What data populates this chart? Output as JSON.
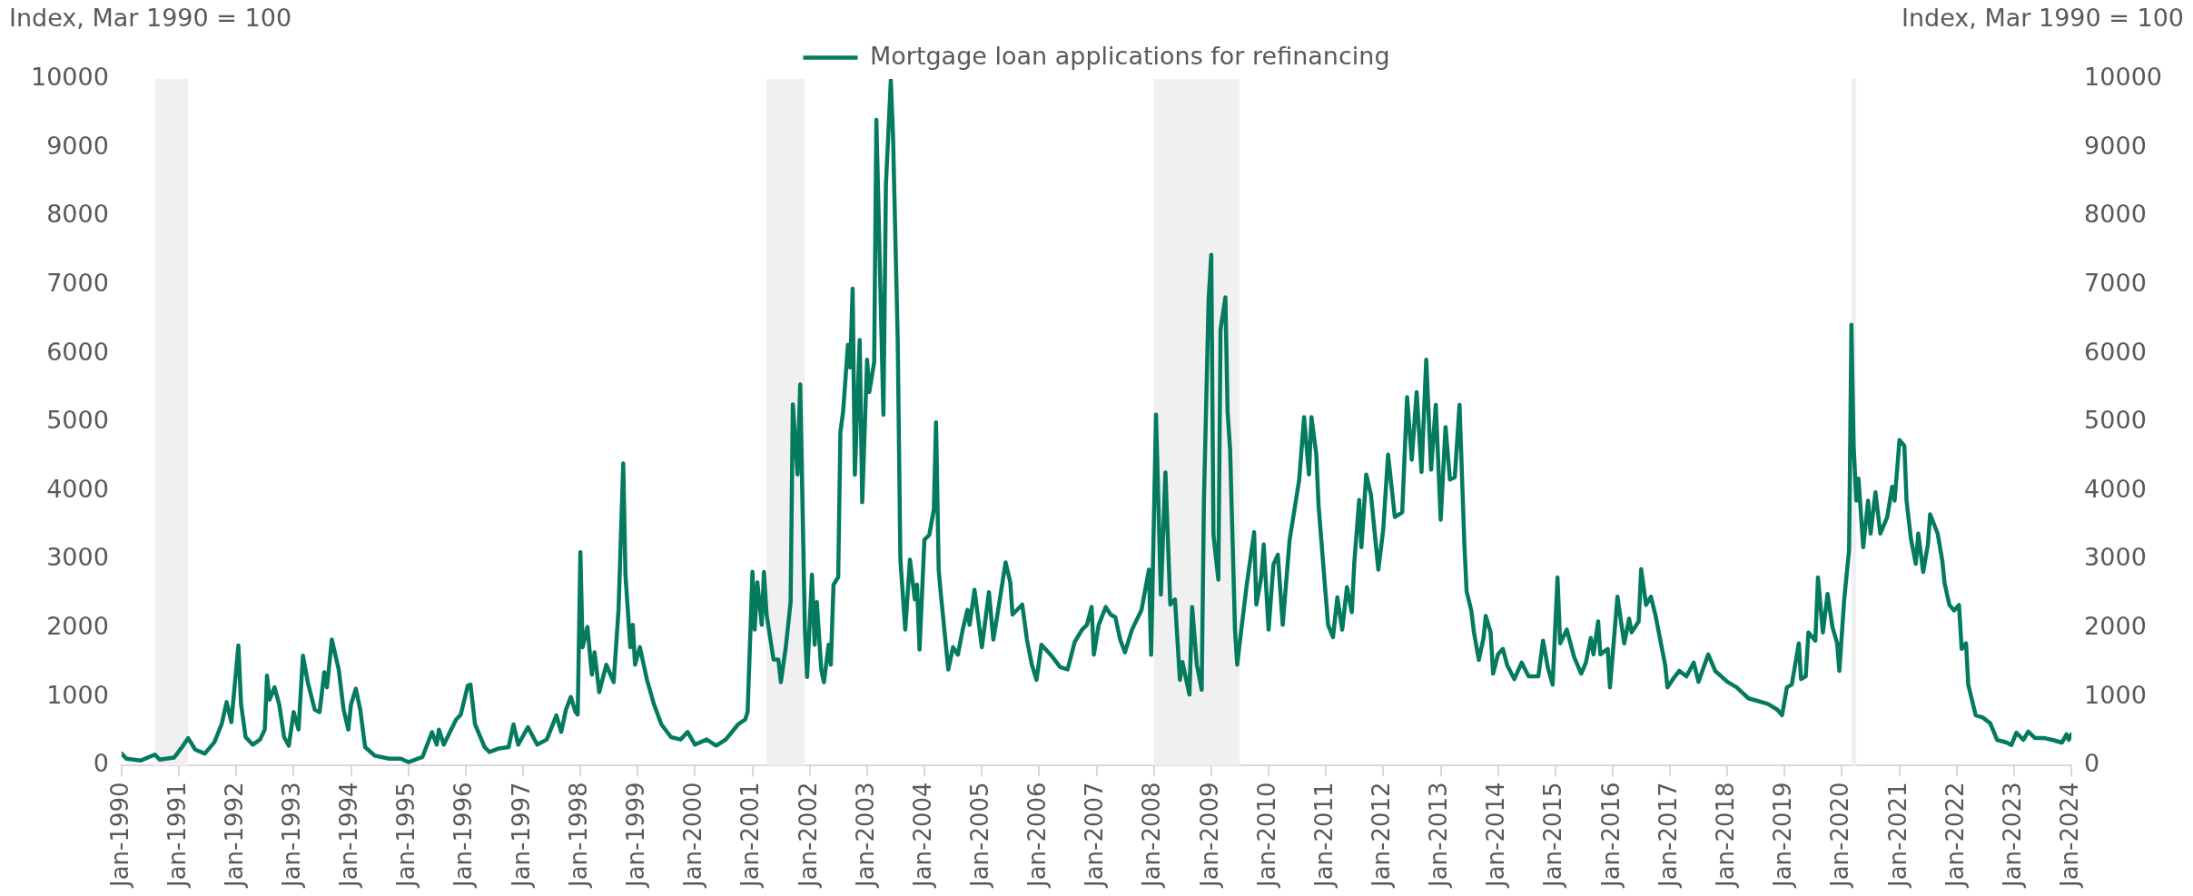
{
  "chart_data": {
    "type": "line",
    "ylabel": "Index, Mar 1990 = 100",
    "y2label": "Index, Mar 1990 = 100",
    "legend": "top",
    "marker": "none",
    "line_style": "solid",
    "xlim": [
      "1990-01",
      "2024-01"
    ],
    "xticks": [
      {
        "value": "1990-01",
        "label": "Jan-1990"
      },
      {
        "value": "1991-01",
        "label": "Jan-1991"
      },
      {
        "value": "1992-01",
        "label": "Jan-1992"
      },
      {
        "value": "1993-01",
        "label": "Jan-1993"
      },
      {
        "value": "1994-01",
        "label": "Jan-1994"
      },
      {
        "value": "1995-01",
        "label": "Jan-1995"
      },
      {
        "value": "1996-01",
        "label": "Jan-1996"
      },
      {
        "value": "1997-01",
        "label": "Jan-1997"
      },
      {
        "value": "1998-01",
        "label": "Jan-1998"
      },
      {
        "value": "1999-01",
        "label": "Jan-1999"
      },
      {
        "value": "2000-01",
        "label": "Jan-2000"
      },
      {
        "value": "2001-01",
        "label": "Jan-2001"
      },
      {
        "value": "2002-01",
        "label": "Jan-2002"
      },
      {
        "value": "2003-01",
        "label": "Jan-2003"
      },
      {
        "value": "2004-01",
        "label": "Jan-2004"
      },
      {
        "value": "2005-01",
        "label": "Jan-2005"
      },
      {
        "value": "2006-01",
        "label": "Jan-2006"
      },
      {
        "value": "2007-01",
        "label": "Jan-2007"
      },
      {
        "value": "2008-01",
        "label": "Jan-2008"
      },
      {
        "value": "2009-01",
        "label": "Jan-2009"
      },
      {
        "value": "2010-01",
        "label": "Jan-2010"
      },
      {
        "value": "2011-01",
        "label": "Jan-2011"
      },
      {
        "value": "2012-01",
        "label": "Jan-2012"
      },
      {
        "value": "2013-01",
        "label": "Jan-2013"
      },
      {
        "value": "2014-01",
        "label": "Jan-2014"
      },
      {
        "value": "2015-01",
        "label": "Jan-2015"
      },
      {
        "value": "2016-01",
        "label": "Jan-2016"
      },
      {
        "value": "2017-01",
        "label": "Jan-2017"
      },
      {
        "value": "2018-01",
        "label": "Jan-2018"
      },
      {
        "value": "2019-01",
        "label": "Jan-2019"
      },
      {
        "value": "2020-01",
        "label": "Jan-2020"
      },
      {
        "value": "2021-01",
        "label": "Jan-2021"
      },
      {
        "value": "2022-01",
        "label": "Jan-2022"
      },
      {
        "value": "2023-01",
        "label": "Jan-2023"
      },
      {
        "value": "2024-01",
        "label": "Jan-2024"
      }
    ],
    "ylim": [
      0,
      10000
    ],
    "yticks": [
      0,
      1000,
      2000,
      3000,
      4000,
      5000,
      6000,
      7000,
      8000,
      9000,
      10000
    ],
    "y2lim": [
      0,
      10000
    ],
    "y2ticks": [
      0,
      1000,
      2000,
      3000,
      4000,
      5000,
      6000,
      7000,
      8000,
      9000,
      10000
    ],
    "bands": [
      {
        "axis": "x",
        "from": "1990-08",
        "to": "1991-03",
        "color": "#f0f0f0"
      },
      {
        "axis": "x",
        "from": "2001-04",
        "to": "2001-12",
        "color": "#f0f0f0"
      },
      {
        "axis": "x",
        "from": "2008-01",
        "to": "2009-07",
        "color": "#f0f0f0"
      },
      {
        "axis": "x",
        "from": "2020-03",
        "to": "2020-04",
        "color": "#f0f0f0"
      }
    ],
    "series": [
      {
        "name": "Mortgage loan applications for refinancing",
        "color": "#047a5e",
        "x": [
          "1990-01-01",
          "1990-02-01",
          "1990-05-01",
          "1990-08-01",
          "1990-09-01",
          "1990-12-01",
          "1991-01-15",
          "1991-03-01",
          "1991-04-15",
          "1991-06-15",
          "1991-08-15",
          "1991-10-01",
          "1991-11-01",
          "1991-12-01",
          "1992-01-15",
          "1992-02-01",
          "1992-03-01",
          "1992-04-15",
          "1992-06-01",
          "1992-07-01",
          "1992-07-15",
          "1992-08-01",
          "1992-09-01",
          "1992-10-01",
          "1992-11-01",
          "1992-12-01",
          "1993-01-01",
          "1993-02-01",
          "1993-03-01",
          "1993-04-01",
          "1993-05-15",
          "1993-06-15",
          "1993-07-15",
          "1993-08-01",
          "1993-09-01",
          "1993-10-15",
          "1993-11-15",
          "1993-12-15",
          "1994-01-01",
          "1994-02-01",
          "1994-03-01",
          "1994-04-01",
          "1994-06-01",
          "1994-09-01",
          "1994-11-15",
          "1995-01-01",
          "1995-04-01",
          "1995-06-01",
          "1995-07-01",
          "1995-07-15",
          "1995-08-15",
          "1995-11-01",
          "1995-12-01",
          "1996-01-15",
          "1996-02-01",
          "1996-03-01",
          "1996-05-01",
          "1996-06-01",
          "1996-08-01",
          "1996-10-01",
          "1996-11-01",
          "1996-12-01",
          "1997-02-01",
          "1997-04-01",
          "1997-06-01",
          "1997-08-01",
          "1997-09-01",
          "1997-10-01",
          "1997-11-01",
          "1997-12-01",
          "1997-12-15",
          "1998-01-01",
          "1998-01-15",
          "1998-02-15",
          "1998-03-15",
          "1998-04-01",
          "1998-05-01",
          "1998-06-15",
          "1998-08-01",
          "1998-09-01",
          "1998-10-01",
          "1998-10-15",
          "1998-11-15",
          "1998-12-01",
          "1998-12-15",
          "1999-01-15",
          "1999-03-01",
          "1999-04-15",
          "1999-06-01",
          "1999-08-01",
          "1999-10-01",
          "1999-11-15",
          "2000-01-01",
          "2000-03-15",
          "2000-05-15",
          "2000-07-15",
          "2000-10-01",
          "2000-11-15",
          "2000-12-01",
          "2001-01-01",
          "2001-01-15",
          "2001-02-01",
          "2001-03-01",
          "2001-03-15",
          "2001-04-01",
          "2001-05-15",
          "2001-06-15",
          "2001-07-01",
          "2001-08-01",
          "2001-09-01",
          "2001-09-15",
          "2001-10-15",
          "2001-11-01",
          "2001-12-01",
          "2001-12-15",
          "2002-01-15",
          "2002-02-01",
          "2002-02-15",
          "2002-03-15",
          "2002-04-01",
          "2002-05-01",
          "2002-05-15",
          "2002-06-01",
          "2002-07-01",
          "2002-07-15",
          "2002-08-01",
          "2002-09-01",
          "2002-09-15",
          "2002-10-01",
          "2002-10-15",
          "2002-11-15",
          "2002-12-01",
          "2003-01-01",
          "2003-01-15",
          "2003-02-15",
          "2003-03-01",
          "2003-04-15",
          "2003-05-01",
          "2003-06-01",
          "2003-06-15",
          "2003-07-15",
          "2003-08-01",
          "2003-09-01",
          "2003-10-01",
          "2003-11-01",
          "2003-11-15",
          "2003-12-01",
          "2004-01-01",
          "2004-02-01",
          "2004-03-01",
          "2004-03-15",
          "2004-04-01",
          "2004-04-15",
          "2004-06-01",
          "2004-07-01",
          "2004-08-01",
          "2004-09-01",
          "2004-10-01",
          "2004-10-15",
          "2004-11-15",
          "2005-01-01",
          "2005-02-15",
          "2005-03-15",
          "2005-04-15",
          "2005-06-01",
          "2005-07-01",
          "2005-07-15",
          "2005-09-15",
          "2005-10-15",
          "2005-11-15",
          "2005-12-15",
          "2006-01-15",
          "2006-03-15",
          "2006-05-15",
          "2006-07-01",
          "2006-08-15",
          "2006-10-01",
          "2006-11-01",
          "2006-12-01",
          "2006-12-15",
          "2007-01-15",
          "2007-03-01",
          "2007-04-01",
          "2007-05-01",
          "2007-06-01",
          "2007-07-01",
          "2007-08-15",
          "2007-10-15",
          "2007-12-01",
          "2007-12-15",
          "2008-01-15",
          "2008-02-15",
          "2008-03-15",
          "2008-04-15",
          "2008-05-15",
          "2008-06-15",
          "2008-07-01",
          "2008-08-15",
          "2008-09-01",
          "2008-10-01",
          "2008-11-01",
          "2008-11-15",
          "2008-12-15",
          "2009-01-01",
          "2009-01-15",
          "2009-02-15",
          "2009-03-01",
          "2009-04-01",
          "2009-04-15",
          "2009-05-01",
          "2009-06-01",
          "2009-06-15",
          "2009-07-15",
          "2009-08-15",
          "2009-10-01",
          "2009-10-15",
          "2009-11-15",
          "2009-12-01",
          "2010-01-01",
          "2010-02-01",
          "2010-03-01",
          "2010-04-01",
          "2010-05-15",
          "2010-06-15",
          "2010-07-15",
          "2010-08-15",
          "2010-09-15",
          "2010-10-01",
          "2010-11-01",
          "2010-11-15",
          "2010-12-15",
          "2011-01-15",
          "2011-02-15",
          "2011-03-15",
          "2011-04-15",
          "2011-05-15",
          "2011-06-15",
          "2011-07-01",
          "2011-08-01",
          "2011-08-15",
          "2011-09-15",
          "2011-10-15",
          "2011-12-01",
          "2012-01-01",
          "2012-02-01",
          "2012-03-15",
          "2012-05-01",
          "2012-06-01",
          "2012-07-01",
          "2012-08-01",
          "2012-09-01",
          "2012-10-01",
          "2012-11-01",
          "2012-12-01",
          "2013-01-01",
          "2013-02-01",
          "2013-03-01",
          "2013-04-01",
          "2013-05-01",
          "2013-06-01",
          "2013-06-15",
          "2013-07-15",
          "2013-08-01",
          "2013-09-01",
          "2013-10-01",
          "2013-10-15",
          "2013-11-15",
          "2013-12-01",
          "2014-01-01",
          "2014-02-01",
          "2014-03-01",
          "2014-04-15",
          "2014-06-01",
          "2014-07-15",
          "2014-09-15",
          "2014-10-15",
          "2014-11-15",
          "2014-12-15",
          "2015-01-15",
          "2015-02-01",
          "2015-03-15",
          "2015-05-01",
          "2015-06-15",
          "2015-07-15",
          "2015-08-15",
          "2015-09-01",
          "2015-10-01",
          "2015-10-15",
          "2015-12-01",
          "2015-12-15",
          "2016-02-01",
          "2016-03-15",
          "2016-04-15",
          "2016-05-01",
          "2016-06-15",
          "2016-07-01",
          "2016-08-01",
          "2016-09-01",
          "2016-10-01",
          "2016-12-01",
          "2016-12-15",
          "2017-02-01",
          "2017-03-01",
          "2017-04-15",
          "2017-06-01",
          "2017-07-01",
          "2017-09-01",
          "2017-10-15",
          "2018-01-01",
          "2018-03-01",
          "2018-05-15",
          "2018-07-15",
          "2018-09-15",
          "2018-11-15",
          "2018-12-15",
          "2019-01-15",
          "2019-02-15",
          "2019-04-01",
          "2019-04-15",
          "2019-05-15",
          "2019-06-01",
          "2019-07-15",
          "2019-08-01",
          "2019-09-01",
          "2019-10-01",
          "2019-11-01",
          "2019-12-01",
          "2019-12-15",
          "2020-01-15",
          "2020-02-15",
          "2020-03-01",
          "2020-03-15",
          "2020-04-01",
          "2020-04-15",
          "2020-05-15",
          "2020-06-15",
          "2020-07-01",
          "2020-08-01",
          "2020-09-01",
          "2020-10-15",
          "2020-11-15",
          "2020-12-01",
          "2021-01-01",
          "2021-02-01",
          "2021-02-15",
          "2021-03-15",
          "2021-04-15",
          "2021-05-01",
          "2021-06-01",
          "2021-07-01",
          "2021-07-15",
          "2021-09-01",
          "2021-10-01",
          "2021-10-15",
          "2021-11-15",
          "2021-12-15",
          "2022-01-15",
          "2022-02-01",
          "2022-03-01",
          "2022-03-15",
          "2022-05-01",
          "2022-06-15",
          "2022-08-01",
          "2022-09-15",
          "2022-11-15",
          "2022-12-15",
          "2023-01-15",
          "2023-03-01",
          "2023-04-01",
          "2023-05-15",
          "2023-07-15",
          "2023-09-01",
          "2023-11-01",
          "2023-12-01",
          "2023-12-15",
          "2024-01-01"
        ],
        "values": [
          175,
          100,
          73,
          160,
          87,
          116,
          250,
          400,
          233,
          175,
          340,
          610,
          925,
          633,
          1750,
          890,
          415,
          305,
          380,
          525,
          1310,
          960,
          1140,
          890,
          415,
          290,
          780,
          525,
          1600,
          1215,
          815,
          780,
          1360,
          1140,
          1835,
          1400,
          815,
          525,
          890,
          1120,
          815,
          270,
          146,
          100,
          100,
          51,
          124,
          488,
          305,
          525,
          305,
          670,
          743,
          1165,
          1180,
          600,
          270,
          197,
          250,
          270,
          600,
          305,
          560,
          305,
          380,
          730,
          490,
          815,
          1000,
          780,
          743,
          3110,
          1725,
          2020,
          1325,
          1650,
          1070,
          1470,
          1215,
          2270,
          4400,
          2780,
          1725,
          2050,
          1470,
          1725,
          1250,
          890,
          600,
          415,
          380,
          490,
          305,
          380,
          290,
          380,
          600,
          670,
          780,
          2820,
          1980,
          2670,
          2050,
          2820,
          2200,
          1545,
          1545,
          1215,
          1725,
          2380,
          5260,
          4240,
          5550,
          1980,
          1290,
          2780,
          1760,
          2380,
          1400,
          1215,
          1760,
          1470,
          2635,
          2745,
          4855,
          5150,
          6130,
          5800,
          6945,
          4237,
          6200,
          3836,
          5910,
          5440,
          5875,
          9405,
          5110,
          8460,
          9980,
          9190,
          6200,
          3000,
          1980,
          3000,
          2420,
          2635,
          1690,
          3290,
          3360,
          3730,
          5000,
          2850,
          2490,
          1400,
          1725,
          1615,
          1980,
          2270,
          2050,
          2560,
          1725,
          2525,
          1835,
          2270,
          2960,
          2670,
          2200,
          2345,
          1835,
          1470,
          1250,
          1760,
          1615,
          1435,
          1400,
          1800,
          1980,
          2050,
          2310,
          1615,
          2050,
          2310,
          2200,
          2160,
          1835,
          1650,
          1980,
          2270,
          2855,
          1615,
          5110,
          2490,
          4270,
          2345,
          2420,
          1250,
          1510,
          1035,
          2310,
          1470,
          1105,
          3835,
          6785,
          7440,
          3360,
          2710,
          6350,
          6820,
          5150,
          4600,
          1980,
          1470,
          2050,
          2635,
          3400,
          2345,
          2745,
          3220,
          1980,
          2930,
          3070,
          2050,
          3290,
          3730,
          4165,
          5075,
          4240,
          5075,
          4530,
          3800,
          2930,
          2050,
          1870,
          2450,
          1980,
          2600,
          2235,
          2960,
          3870,
          3180,
          4240,
          3945,
          2855,
          3435,
          4530,
          3620,
          3690,
          5365,
          4455,
          5440,
          4275,
          5910,
          4310,
          5255,
          3580,
          4930,
          4165,
          4200,
          5255,
          3220,
          2540,
          2260,
          1940,
          1540,
          1860,
          2180,
          1940,
          1340,
          1620,
          1700,
          1460,
          1260,
          1500,
          1300,
          1300,
          1820,
          1420,
          1180,
          2740,
          1780,
          1980,
          1580,
          1340,
          1500,
          1860,
          1620,
          2100,
          1620,
          1700,
          1140,
          2460,
          1780,
          2140,
          1940,
          2100,
          2860,
          2340,
          2460,
          2180,
          1460,
          1140,
          1300,
          1380,
          1300,
          1500,
          1220,
          1620,
          1380,
          1220,
          1140,
          980,
          940,
          900,
          815,
          735,
          1140,
          1180,
          1780,
          1260,
          1300,
          1940,
          1820,
          2740,
          1940,
          2500,
          2020,
          1780,
          1380,
          2420,
          3140,
          6420,
          4660,
          3860,
          4180,
          3180,
          3860,
          3380,
          3980,
          3380,
          3620,
          4060,
          3860,
          4740,
          4660,
          3860,
          3300,
          2940,
          3380,
          2820,
          3220,
          3660,
          3380,
          2980,
          2660,
          2340,
          2260,
          2340,
          1700,
          1780,
          1180,
          735,
          700,
          620,
          375,
          335,
          300,
          480,
          375,
          495,
          400,
          400,
          375,
          335,
          455,
          375,
          455
        ]
      }
    ]
  }
}
